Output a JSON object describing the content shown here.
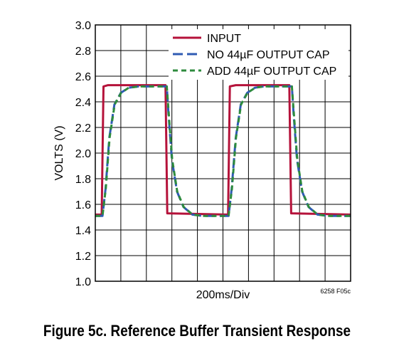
{
  "caption": "Figure 5c. Reference Buffer Transient Response",
  "colors": {
    "input": "#b5123a",
    "no_cap": "#2f5bb3",
    "add_cap": "#2e8b3d",
    "grid": "#000000"
  },
  "chart_data": {
    "type": "line",
    "title": "",
    "xlabel": "200ms/Div",
    "ylabel": "VOLTS (V)",
    "annotation": "6258 F05c",
    "ylim": [
      1.0,
      3.0
    ],
    "yticks": [
      "1.0",
      "1.2",
      "1.4",
      "1.6",
      "1.8",
      "2.0",
      "2.2",
      "2.4",
      "2.6",
      "2.8",
      "3.0"
    ],
    "x_divisions": 10,
    "grid": true,
    "legend_position": "top-right",
    "series": [
      {
        "name": "INPUT",
        "color": "#b5123a",
        "dash": "solid",
        "points": [
          [
            0,
            1.52
          ],
          [
            0.25,
            1.52
          ],
          [
            0.32,
            2.52
          ],
          [
            0.5,
            2.53
          ],
          [
            2.75,
            2.53
          ],
          [
            2.82,
            1.53
          ],
          [
            5.2,
            1.52
          ],
          [
            5.27,
            2.52
          ],
          [
            5.5,
            2.53
          ],
          [
            7.6,
            2.53
          ],
          [
            7.67,
            1.53
          ],
          [
            10,
            1.52
          ]
        ]
      },
      {
        "name": "NO 44µF OUTPUT CAP",
        "color": "#2f5bb3",
        "dash": "long-dash",
        "points": [
          [
            0,
            1.51
          ],
          [
            0.28,
            1.51
          ],
          [
            0.4,
            1.72
          ],
          [
            0.55,
            2.12
          ],
          [
            0.75,
            2.38
          ],
          [
            1.0,
            2.47
          ],
          [
            1.3,
            2.51
          ],
          [
            1.7,
            2.52
          ],
          [
            2.8,
            2.52
          ],
          [
            2.87,
            2.3
          ],
          [
            3.0,
            1.95
          ],
          [
            3.2,
            1.7
          ],
          [
            3.45,
            1.58
          ],
          [
            3.8,
            1.52
          ],
          [
            4.2,
            1.51
          ],
          [
            5.22,
            1.51
          ],
          [
            5.34,
            1.72
          ],
          [
            5.5,
            2.12
          ],
          [
            5.7,
            2.38
          ],
          [
            5.95,
            2.47
          ],
          [
            6.25,
            2.51
          ],
          [
            6.6,
            2.52
          ],
          [
            7.7,
            2.52
          ],
          [
            7.77,
            2.3
          ],
          [
            7.9,
            1.95
          ],
          [
            8.1,
            1.7
          ],
          [
            8.35,
            1.58
          ],
          [
            8.7,
            1.52
          ],
          [
            9.1,
            1.51
          ],
          [
            10,
            1.51
          ]
        ]
      },
      {
        "name": "ADD 44µF OUTPUT CAP",
        "color": "#2e8b3d",
        "dash": "short-dash",
        "points": [
          [
            0,
            1.51
          ],
          [
            0.28,
            1.51
          ],
          [
            0.41,
            1.72
          ],
          [
            0.56,
            2.12
          ],
          [
            0.76,
            2.38
          ],
          [
            1.01,
            2.47
          ],
          [
            1.31,
            2.51
          ],
          [
            1.71,
            2.52
          ],
          [
            2.8,
            2.52
          ],
          [
            2.88,
            2.3
          ],
          [
            3.01,
            1.95
          ],
          [
            3.21,
            1.7
          ],
          [
            3.46,
            1.58
          ],
          [
            3.81,
            1.52
          ],
          [
            4.21,
            1.51
          ],
          [
            5.22,
            1.51
          ],
          [
            5.35,
            1.72
          ],
          [
            5.51,
            2.12
          ],
          [
            5.71,
            2.38
          ],
          [
            5.96,
            2.47
          ],
          [
            6.26,
            2.51
          ],
          [
            6.61,
            2.52
          ],
          [
            7.7,
            2.52
          ],
          [
            7.78,
            2.3
          ],
          [
            7.91,
            1.95
          ],
          [
            8.11,
            1.7
          ],
          [
            8.36,
            1.58
          ],
          [
            8.71,
            1.52
          ],
          [
            9.11,
            1.51
          ],
          [
            10,
            1.51
          ]
        ]
      }
    ]
  }
}
